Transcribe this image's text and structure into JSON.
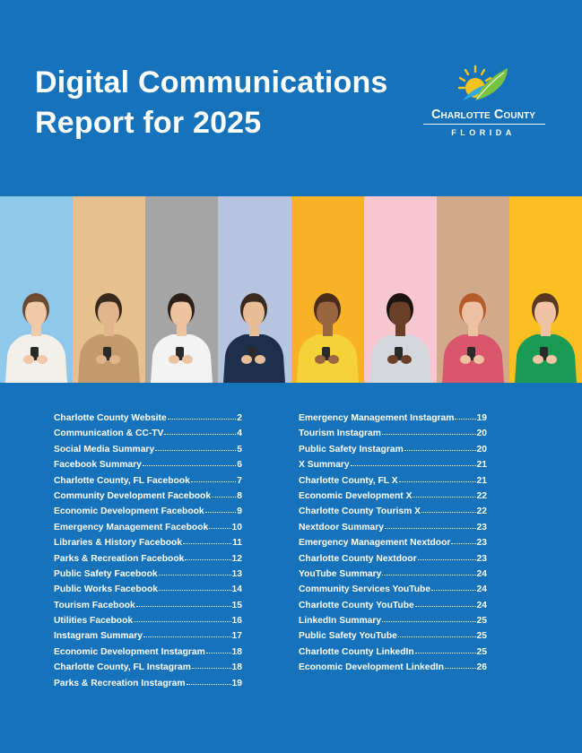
{
  "title_lines": [
    "Digital Communications",
    "Report for 2025"
  ],
  "logo": {
    "name": "Charlotte County",
    "sub": "FLORIDA"
  },
  "photo_panels": [
    {
      "bg": "#8fc8ea",
      "shirt": "#f2f0ea",
      "skin": "#efc9a8",
      "hair": "#6a4a30"
    },
    {
      "bg": "#e7c08f",
      "shirt": "#c39a6c",
      "skin": "#e1b48c",
      "hair": "#3a2a1e"
    },
    {
      "bg": "#a5a5a5",
      "shirt": "#f3f3f3",
      "skin": "#edc3a0",
      "hair": "#2c2018"
    },
    {
      "bg": "#b7c4df",
      "shirt": "#1e2f4c",
      "skin": "#e7bd98",
      "hair": "#3a2a1e"
    },
    {
      "bg": "#f7b228",
      "shirt": "#f5d237",
      "skin": "#9a6640",
      "hair": "#4a2c18"
    },
    {
      "bg": "#f7c6cf",
      "shirt": "#d4d8dc",
      "skin": "#6a4028",
      "hair": "#1c1410"
    },
    {
      "bg": "#d1aa8c",
      "shirt": "#d9566b",
      "skin": "#edc0a2",
      "hair": "#b55a2a"
    },
    {
      "bg": "#fbbf22",
      "shirt": "#1a9a52",
      "skin": "#efc3a4",
      "hair": "#5a3822"
    }
  ],
  "toc_left": [
    {
      "label": "Charlotte County Website",
      "page": "2"
    },
    {
      "label": "Communication & CC-TV",
      "page": "4"
    },
    {
      "label": "Social Media Summary",
      "page": "5"
    },
    {
      "label": "Facebook Summary",
      "page": "6"
    },
    {
      "label": "Charlotte County, FL Facebook",
      "page": "7"
    },
    {
      "label": "Community Development Facebook",
      "page": "8"
    },
    {
      "label": "Economic Development Facebook",
      "page": "9"
    },
    {
      "label": "Emergency Management Facebook",
      "page": "10"
    },
    {
      "label": "Libraries & History Facebook",
      "page": "11"
    },
    {
      "label": "Parks & Recreation Facebook",
      "page": "12"
    },
    {
      "label": "Public Safety Facebook",
      "page": "13"
    },
    {
      "label": "Public Works Facebook",
      "page": "14"
    },
    {
      "label": "Tourism Facebook",
      "page": "15"
    },
    {
      "label": "Utilities Facebook",
      "page": "16"
    },
    {
      "label": "Instagram Summary",
      "page": "17"
    },
    {
      "label": "Economic Development Instagram",
      "page": "18"
    },
    {
      "label": "Charlotte County, FL Instagram",
      "page": "18"
    },
    {
      "label": "Parks & Recreation Instagram",
      "page": "19"
    }
  ],
  "toc_right": [
    {
      "label": "Emergency Management Instagram",
      "page": "19"
    },
    {
      "label": "Tourism Instagram",
      "page": "20"
    },
    {
      "label": "Public Safety Instagram",
      "page": "20"
    },
    {
      "label": "X Summary",
      "page": "21"
    },
    {
      "label": "Charlotte County, FL X",
      "page": "21"
    },
    {
      "label": "Economic Development X",
      "page": "22"
    },
    {
      "label": "Charlotte County Tourism X",
      "page": "22"
    },
    {
      "label": "Nextdoor Summary",
      "page": "23"
    },
    {
      "label": "Emergency Management Nextdoor",
      "page": "23"
    },
    {
      "label": "Charlotte County Nextdoor",
      "page": "23"
    },
    {
      "label": "YouTube Summary",
      "page": "24"
    },
    {
      "label": "Community Services YouTube",
      "page": "24"
    },
    {
      "label": "Charlotte County YouTube",
      "page": "24"
    },
    {
      "label": "LinkedIn Summary",
      "page": "25"
    },
    {
      "label": "Public Safety YouTube",
      "page": "25"
    },
    {
      "label": "Charlotte County LinkedIn",
      "page": "25"
    },
    {
      "label": "Economic Development LinkedIn",
      "page": "26"
    }
  ]
}
